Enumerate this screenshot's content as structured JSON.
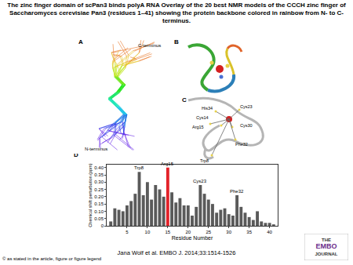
{
  "header": {
    "title": "The zinc finger domain of scPan3 binds polyA RNA Overlay of the 20 best NMR models of the CCCH zinc finger of Saccharomyces cerevisiae Pan3 (residues 1–41) showing the protein backbone colored in rainbow from N- to C-terminus."
  },
  "panels": {
    "A": {
      "label": "A",
      "texts": [
        "C-terminus",
        "N-terminus"
      ]
    },
    "B": {
      "label": "B"
    },
    "C": {
      "label": "C",
      "residues": [
        "His34",
        "Cys14",
        "Cys23",
        "Cys30",
        "Arg15",
        "Phe32",
        "Trp8"
      ]
    }
  },
  "chart_data": {
    "type": "bar",
    "title": "D",
    "x_label": "Residue Number",
    "y_label": "Chemical shift perturbation (ppm)",
    "x": [
      1,
      2,
      3,
      4,
      5,
      6,
      7,
      8,
      9,
      10,
      11,
      12,
      13,
      14,
      15,
      16,
      17,
      18,
      19,
      20,
      21,
      22,
      23,
      24,
      25,
      26,
      27,
      28,
      29,
      30,
      31,
      32,
      33,
      34,
      35,
      36,
      37,
      38,
      39,
      40,
      41
    ],
    "values": [
      0.03,
      0.12,
      0.11,
      0.1,
      0.14,
      0.17,
      0.22,
      0.37,
      0.21,
      0.3,
      0.18,
      0.28,
      0.25,
      0.2,
      0.4,
      0.23,
      0.16,
      0.19,
      0.14,
      0.14,
      0.07,
      0.13,
      0.28,
      0.22,
      0.18,
      0.15,
      0.09,
      0.11,
      0.12,
      0.08,
      0.07,
      0.21,
      0.13,
      0.09,
      0.06,
      0.04,
      0.1,
      0.03,
      0.02,
      0.02,
      0.01
    ],
    "colors": [
      "#5a5a5a",
      "#5a5a5a",
      "#5a5a5a",
      "#5a5a5a",
      "#5a5a5a",
      "#5a5a5a",
      "#5a5a5a",
      "#5a5a5a",
      "#5a5a5a",
      "#5a5a5a",
      "#5a5a5a",
      "#5a5a5a",
      "#5a5a5a",
      "#5a5a5a",
      "#e3232a",
      "#5a5a5a",
      "#5a5a5a",
      "#5a5a5a",
      "#5a5a5a",
      "#5a5a5a",
      "#5a5a5a",
      "#5a5a5a",
      "#5a5a5a",
      "#5a5a5a",
      "#5a5a5a",
      "#5a5a5a",
      "#5a5a5a",
      "#5a5a5a",
      "#5a5a5a",
      "#5a5a5a",
      "#5a5a5a",
      "#5a5a5a",
      "#5a5a5a",
      "#5a5a5a",
      "#5a5a5a",
      "#5a5a5a",
      "#5a5a5a",
      "#5a5a5a",
      "#5a5a5a",
      "#5a5a5a",
      "#5a5a5a"
    ],
    "xlim": [
      0,
      42
    ],
    "xticks": [
      5,
      10,
      15,
      20,
      25,
      30,
      35,
      40
    ],
    "ylim": [
      0,
      0.42
    ],
    "yticks": [
      0,
      0.05,
      {
        "value": 0.1,
        "label": "0.10"
      },
      0.15,
      {
        "value": 0.2,
        "label": "0.20"
      },
      0.25,
      {
        "value": 0.3,
        "label": "0.30"
      },
      0.35,
      {
        "value": 0.4,
        "label": "0.40"
      }
    ],
    "annotations": [
      {
        "x": 8,
        "text": "Trp8"
      },
      {
        "x": 15,
        "text": "Arg15"
      },
      {
        "x": 23,
        "text": "Cys23"
      },
      {
        "x": 32,
        "text": "Phe32"
      }
    ]
  },
  "footer": {
    "citation": "Jana Wolf et al. EMBO J. 2014;33:1514-1526",
    "copyright": "© as stated in the article, figure or figure legend",
    "logo": [
      "THE",
      "EMBO",
      "JOURNAL"
    ]
  }
}
